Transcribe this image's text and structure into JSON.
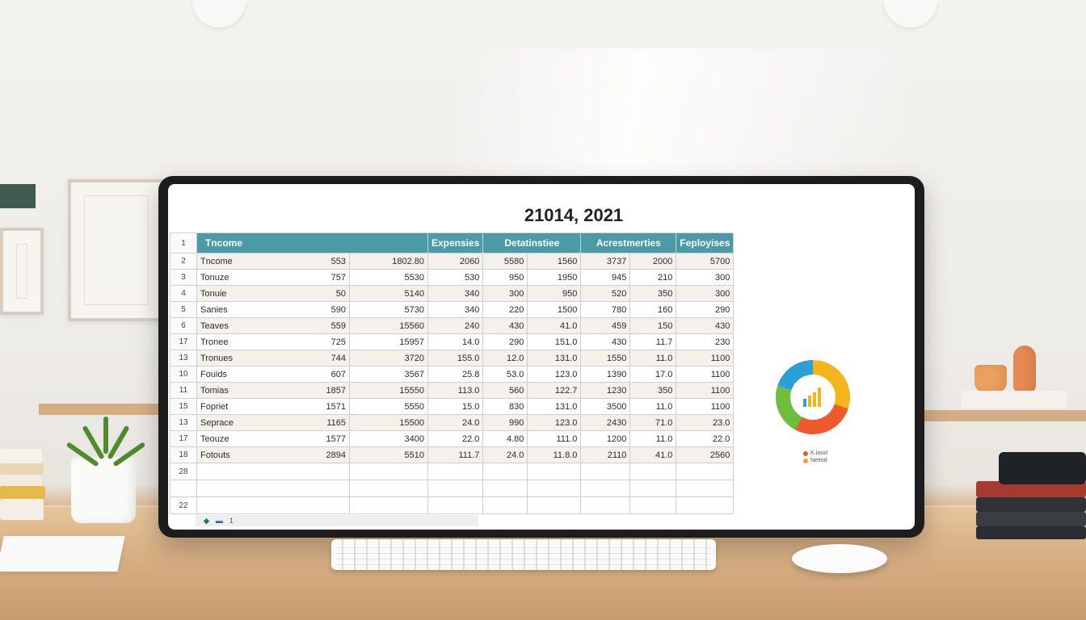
{
  "sheet": {
    "title": "21014, 2021",
    "header_row_number": "1",
    "headers": [
      "Tncome",
      "Expensies",
      "Detatinstiee",
      "Acrestmerties",
      "Feployises"
    ],
    "rows": [
      {
        "n": "2",
        "label": "Tncome",
        "v": [
          "553",
          "1802.80",
          "2060",
          "5580",
          "1560",
          "3737",
          "2000",
          "5700"
        ]
      },
      {
        "n": "3",
        "label": "Tonuze",
        "v": [
          "757",
          "5530",
          "530",
          "950",
          "1950",
          "945",
          "210",
          "300"
        ]
      },
      {
        "n": "4",
        "label": "Tonuie",
        "v": [
          "50",
          "5140",
          "340",
          "300",
          "950",
          "520",
          "350",
          "300"
        ]
      },
      {
        "n": "5",
        "label": "Sanies",
        "v": [
          "590",
          "5730",
          "340",
          "220",
          "1500",
          "780",
          "160",
          "290"
        ]
      },
      {
        "n": "6",
        "label": "Teaves",
        "v": [
          "559",
          "15560",
          "240",
          "430",
          "41.0",
          "459",
          "150",
          "430"
        ]
      },
      {
        "n": "17",
        "label": "Tronee",
        "v": [
          "725",
          "15957",
          "14.0",
          "290",
          "151.0",
          "430",
          "11.7",
          "230"
        ]
      },
      {
        "n": "13",
        "label": "Tronues",
        "v": [
          "744",
          "3720",
          "155.0",
          "12.0",
          "131.0",
          "1550",
          "11.0",
          "1100"
        ]
      },
      {
        "n": "10",
        "label": "Fouids",
        "v": [
          "607",
          "3567",
          "25.8",
          "53.0",
          "123.0",
          "1390",
          "17.0",
          "1100"
        ]
      },
      {
        "n": "11",
        "label": "Tomias",
        "v": [
          "1857",
          "15550",
          "113.0",
          "560",
          "122.7",
          "1230",
          "350",
          "1100"
        ]
      },
      {
        "n": "15",
        "label": "Fopriet",
        "v": [
          "1571",
          "5550",
          "15.0",
          "830",
          "131.0",
          "3500",
          "11.0",
          "1100"
        ]
      },
      {
        "n": "13",
        "label": "Seprace",
        "v": [
          "1165",
          "15500",
          "24.0",
          "990",
          "123.0",
          "2430",
          "71.0",
          "23.0"
        ]
      },
      {
        "n": "17",
        "label": "Teouze",
        "v": [
          "1577",
          "3400",
          "22.0",
          "4.80",
          "111.0",
          "1200",
          "11.0",
          "22.0"
        ]
      },
      {
        "n": "18",
        "label": "Fotouts",
        "v": [
          "2894",
          "5510",
          "111.7",
          "24.0",
          "11.8.0",
          "2110",
          "41.0",
          "2560"
        ]
      }
    ],
    "empty_rows": [
      "28",
      "",
      "22"
    ]
  },
  "chart_data": {
    "type": "pie",
    "values": [
      30,
      28,
      22,
      20
    ],
    "colors": [
      "#f2b51b",
      "#ef5a2c",
      "#6cbf3a",
      "#2a9fd8"
    ],
    "legend": [
      {
        "label": "K.lasid",
        "color": "#ef5a2c"
      },
      {
        "label": "Nettod",
        "color": "#f0a030"
      }
    ]
  },
  "colors": {
    "header_fill": "#4a9aa8",
    "bezel": "#1d1d1f"
  },
  "icons": [
    "excel-icon",
    "window-icon"
  ],
  "taskbar": {
    "item3": "1"
  }
}
